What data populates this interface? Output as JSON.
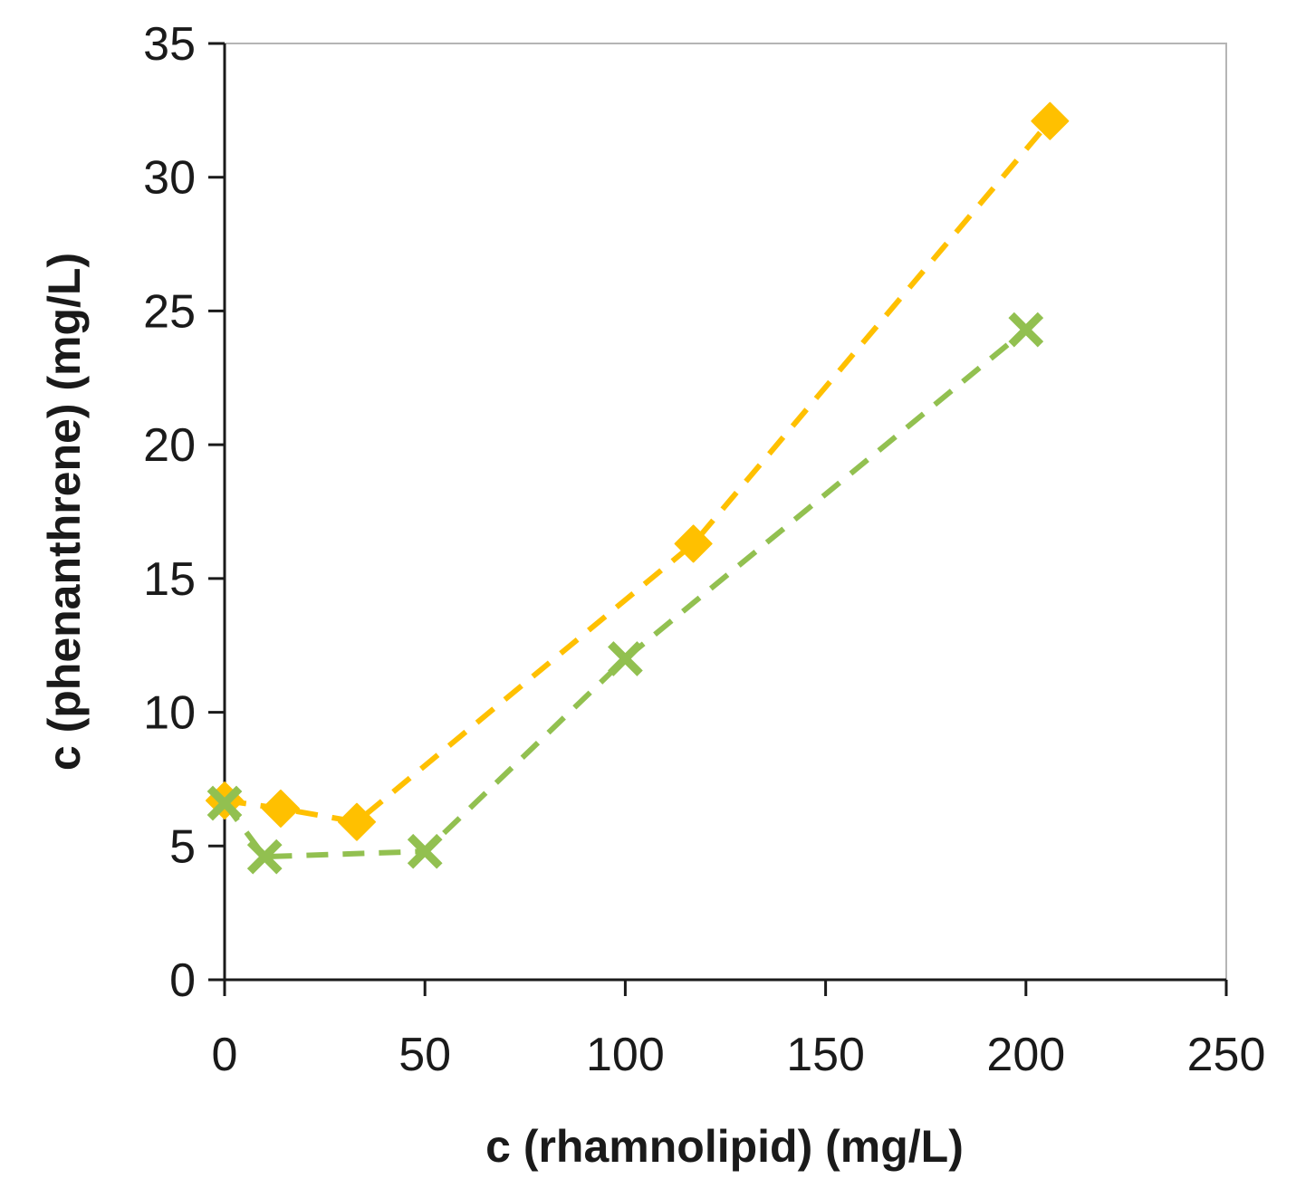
{
  "chart_data": {
    "type": "scatter",
    "title": "",
    "xlabel": "c (rhamnolipid) (mg/L)",
    "ylabel": "c (phenanthrene) (mg/L)",
    "xlim": [
      0,
      250
    ],
    "ylim": [
      0,
      35
    ],
    "xticks": [
      "0",
      "50",
      "100",
      "150",
      "200",
      "250"
    ],
    "yticks": [
      "0",
      "5",
      "10",
      "15",
      "20",
      "25",
      "30",
      "35"
    ],
    "grid": false,
    "legend": "none",
    "series": [
      {
        "name": "series-orange",
        "marker": "diamond",
        "line": "dashed",
        "color": "#FFC000",
        "x": [
          0,
          14,
          33,
          117,
          206
        ],
        "y": [
          6.7,
          6.4,
          5.9,
          16.3,
          32.1
        ]
      },
      {
        "name": "series-green",
        "marker": "x",
        "line": "dashed",
        "color": "#92C050",
        "x": [
          0,
          10,
          50,
          100,
          200
        ],
        "y": [
          6.6,
          4.6,
          4.8,
          12.0,
          24.3
        ]
      }
    ]
  }
}
